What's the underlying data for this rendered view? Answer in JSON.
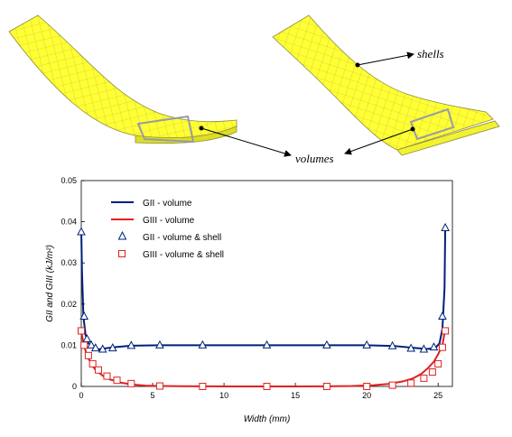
{
  "annotations": {
    "shells": "shells",
    "volumes": "volumes"
  },
  "chart_data": {
    "type": "line",
    "xlabel": "Width (mm)",
    "ylabel": "GII and GIII (kJ/m²)",
    "xlim": [
      0,
      26
    ],
    "ylim": [
      0,
      0.05
    ],
    "xticks": [
      "0",
      "5",
      "10",
      "15",
      "20",
      "25"
    ],
    "yticks": [
      "0",
      "0.01",
      "0.02",
      "0.03",
      "0.04",
      "0.05"
    ],
    "grid": false,
    "legend_position": "top-left",
    "series": [
      {
        "name": "GII - volume",
        "kind": "line",
        "color": "#00207a",
        "x": [
          0,
          0.05,
          0.15,
          0.3,
          0.5,
          0.8,
          1.2,
          1.6,
          2.2,
          3.5,
          5.5,
          8.5,
          13,
          17.2,
          20,
          22,
          23.2,
          24.2,
          24.8,
          25.1,
          25.3,
          25.45,
          25.5
        ],
        "y": [
          0.038,
          0.028,
          0.017,
          0.0125,
          0.0105,
          0.0095,
          0.009,
          0.0092,
          0.0095,
          0.0099,
          0.01,
          0.01,
          0.01,
          0.01,
          0.01,
          0.0098,
          0.0094,
          0.0091,
          0.0093,
          0.0105,
          0.014,
          0.024,
          0.039
        ]
      },
      {
        "name": "GIII - volume",
        "kind": "line",
        "color": "#e02020",
        "x": [
          0,
          0.15,
          0.4,
          0.7,
          1.0,
          1.5,
          2.0,
          2.8,
          3.5,
          4.5,
          5.5,
          7,
          9,
          12,
          15,
          17,
          19,
          20.5,
          21.5,
          22.5,
          23.2,
          23.8,
          24.3,
          24.7,
          25.0,
          25.3,
          25.5
        ],
        "y": [
          0.0135,
          0.0105,
          0.0075,
          0.0055,
          0.004,
          0.0026,
          0.0017,
          0.0009,
          0.0005,
          0.0002,
          0.0001,
          5e-05,
          2e-05,
          0,
          0,
          2e-05,
          0.0001,
          0.0003,
          0.0006,
          0.0012,
          0.0019,
          0.003,
          0.0045,
          0.006,
          0.0078,
          0.01,
          0.014
        ]
      },
      {
        "name": "GII - volume & shell",
        "kind": "markers",
        "marker": "triangle",
        "color": "#00207a",
        "x": [
          0,
          0.2,
          0.4,
          0.7,
          1.0,
          1.5,
          2.2,
          3.5,
          5.5,
          8.5,
          13,
          17.2,
          20,
          21.8,
          23.1,
          24,
          24.7,
          25.3,
          25.5
        ],
        "y": [
          0.0375,
          0.017,
          0.0115,
          0.01,
          0.0093,
          0.009,
          0.0093,
          0.0099,
          0.01,
          0.01,
          0.01,
          0.01,
          0.01,
          0.0098,
          0.0092,
          0.009,
          0.0095,
          0.017,
          0.0385
        ]
      },
      {
        "name": "GIII - volume & shell",
        "kind": "markers",
        "marker": "square",
        "color": "#e02020",
        "x": [
          0,
          0.2,
          0.5,
          0.8,
          1.2,
          1.8,
          2.5,
          3.5,
          5.5,
          8.5,
          13,
          17.2,
          20,
          21.8,
          23.1,
          24,
          24.6,
          25,
          25.3,
          25.5
        ],
        "y": [
          0.0135,
          0.01,
          0.0075,
          0.0055,
          0.004,
          0.0025,
          0.0015,
          0.0007,
          0.0001,
          0,
          0,
          0,
          0,
          0.0003,
          0.0008,
          0.002,
          0.0035,
          0.0055,
          0.0095,
          0.0135
        ]
      }
    ]
  }
}
